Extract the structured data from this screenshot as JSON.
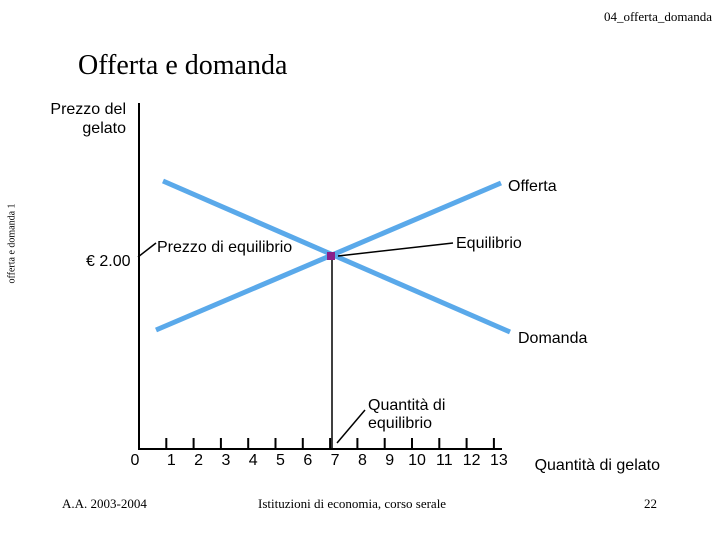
{
  "header": {
    "tag": "04_offerta_domanda"
  },
  "slide": {
    "title": "Offerta e domanda",
    "side_label": "offerta e domanda 1"
  },
  "diagram": {
    "y_label": "Prezzo del gelato",
    "x_label": "Quantità di gelato",
    "price_label": "€ 2.00",
    "equilibrium_price_label": "Prezzo di equilibrio",
    "equilibrium_label": "Equilibrio",
    "equilibrium_quantity_label": "Quantità di equilibrio",
    "supply_label": "Offerta",
    "demand_label": "Domanda",
    "x_ticks": [
      "0",
      "1",
      "2",
      "3",
      "4",
      "5",
      "6",
      "7",
      "8",
      "9",
      "10",
      "11",
      "12",
      "13"
    ],
    "equilibrium": {
      "quantity": 7,
      "price": 2.0
    },
    "colors": {
      "curves": "#5aa9ea",
      "equilibrium_point": "#8a1f8a",
      "axes": "#000000"
    }
  },
  "footer": {
    "left": "A.A. 2003-2004",
    "center": "Istituzioni di economia, corso serale",
    "page": "22"
  }
}
